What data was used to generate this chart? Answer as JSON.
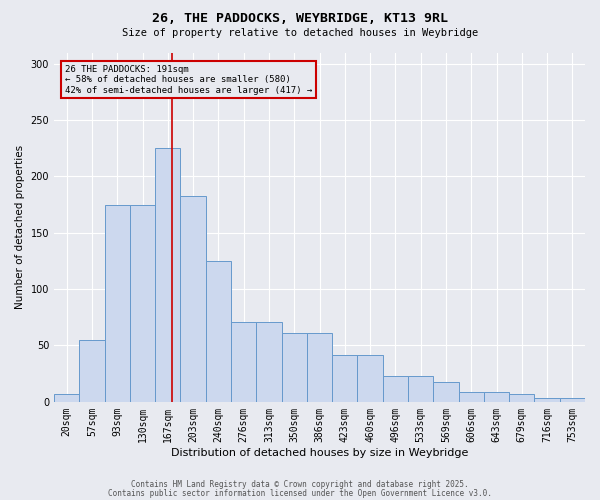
{
  "title_line1": "26, THE PADDOCKS, WEYBRIDGE, KT13 9RL",
  "title_line2": "Size of property relative to detached houses in Weybridge",
  "xlabel": "Distribution of detached houses by size in Weybridge",
  "ylabel": "Number of detached properties",
  "heights": [
    7,
    55,
    175,
    175,
    225,
    183,
    125,
    71,
    71,
    61,
    61,
    42,
    42,
    23,
    23,
    18,
    9,
    9,
    7,
    3,
    3
  ],
  "bar_labels": [
    "20sqm",
    "57sqm",
    "93sqm",
    "130sqm",
    "167sqm",
    "203sqm",
    "240sqm",
    "276sqm",
    "313sqm",
    "350sqm",
    "386sqm",
    "423sqm",
    "460sqm",
    "496sqm",
    "533sqm",
    "569sqm",
    "606sqm",
    "643sqm",
    "679sqm",
    "716sqm",
    "753sqm"
  ],
  "property_label": "26 THE PADDOCKS: 191sqm",
  "annotation_line2": "← 58% of detached houses are smaller (580)",
  "annotation_line3": "42% of semi-detached houses are larger (417) →",
  "vline_x": 4.649,
  "vline_color": "#cc0000",
  "bar_facecolor": "#ccd8ee",
  "bar_edgecolor": "#6699cc",
  "annotation_box_edgecolor": "#cc0000",
  "background_color": "#e8eaf0",
  "grid_color": "#ffffff",
  "ylim": [
    0,
    310
  ],
  "yticks": [
    0,
    50,
    100,
    150,
    200,
    250,
    300
  ],
  "footer_line1": "Contains HM Land Registry data © Crown copyright and database right 2025.",
  "footer_line2": "Contains public sector information licensed under the Open Government Licence v3.0."
}
